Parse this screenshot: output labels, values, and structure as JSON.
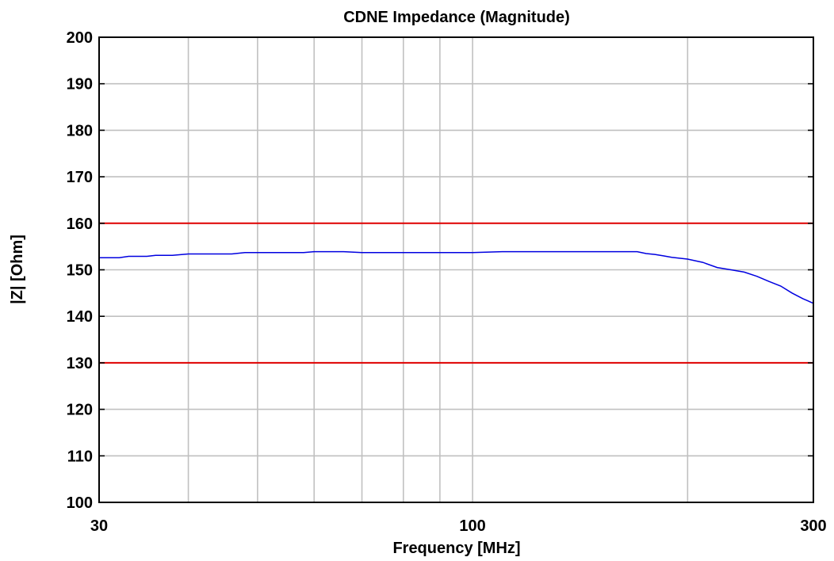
{
  "chart_data": {
    "type": "line",
    "title": "CDNE Impedance (Magnitude)",
    "xlabel": "Frequency [MHz]",
    "ylabel": "|Z| [Ohm]",
    "x_scale": "log",
    "xlim": [
      30,
      300
    ],
    "ylim": [
      100,
      200
    ],
    "x_tick_labels": [
      {
        "value": 30,
        "label": "30"
      },
      {
        "value": 100,
        "label": "100"
      },
      {
        "value": 300,
        "label": "300"
      }
    ],
    "x_gridlines": [
      40,
      50,
      60,
      70,
      80,
      90,
      100,
      200
    ],
    "y_ticks": [
      100,
      110,
      120,
      130,
      140,
      150,
      160,
      170,
      180,
      190,
      200
    ],
    "grid": true,
    "legend": "none",
    "reference_lines": [
      {
        "y": 160,
        "color": "#e00000"
      },
      {
        "y": 130,
        "color": "#e00000"
      }
    ],
    "series": [
      {
        "color": "#0000e0",
        "x": [
          30,
          32,
          33,
          35,
          36,
          38,
          40,
          41,
          43,
          46,
          48,
          50,
          54,
          58,
          60,
          63,
          66,
          70,
          72,
          80,
          90,
          100,
          110,
          120,
          140,
          160,
          170,
          175,
          180,
          185,
          190,
          200,
          210,
          220,
          230,
          240,
          250,
          260,
          270,
          280,
          290,
          300
        ],
        "y": [
          152.6,
          152.6,
          152.9,
          152.9,
          153.1,
          153.1,
          153.4,
          153.4,
          153.4,
          153.4,
          153.7,
          153.7,
          153.7,
          153.7,
          153.9,
          153.9,
          153.9,
          153.7,
          153.7,
          153.7,
          153.7,
          153.7,
          153.9,
          153.9,
          153.9,
          153.9,
          153.9,
          153.5,
          153.3,
          153.0,
          152.7,
          152.3,
          151.6,
          150.5,
          150.0,
          149.5,
          148.6,
          147.5,
          146.5,
          145.0,
          143.8,
          142.8
        ]
      }
    ]
  }
}
